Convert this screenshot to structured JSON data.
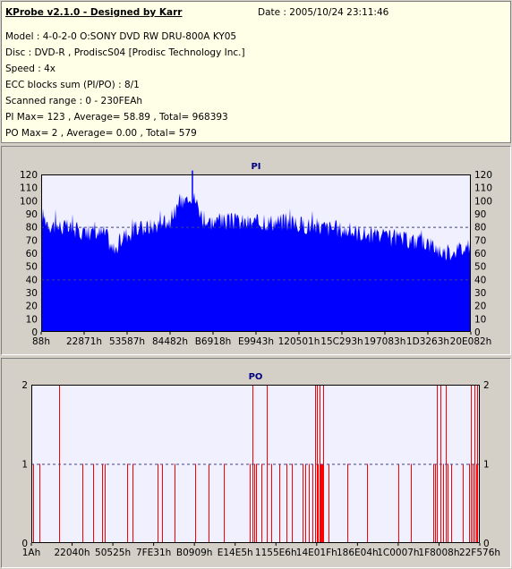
{
  "info": {
    "title": "KProbe v2.1.0 - Designed by Karr",
    "date": "Date : 2005/10/24 23:11:46",
    "model": "Model : 4-0-2-0 O:SONY    DVD RW DRU-800A  KY05",
    "disc": "Disc : DVD-R , ProdiscS04   [Prodisc Technology Inc.]",
    "speed": "Speed : 4x",
    "ecc": "ECC blocks sum (PI/PO) : 8/1",
    "scanned": "Scanned range : 0 - 230FEAh",
    "pi_summary": "PI Max= 123 , Average= 58.89 , Total= 968393",
    "po_summary": "PO Max= 2 , Average= 0.00 , Total= 579"
  },
  "colors": {
    "plot_bg": "#f0f0ff",
    "pi_fill": "#0000ff",
    "po_line": "#ff0000",
    "grid": "#404080",
    "title": "#000080"
  },
  "chart_data": [
    {
      "type": "area",
      "title": "PI",
      "ylim": [
        0,
        120
      ],
      "yticks": [
        0,
        10,
        20,
        30,
        40,
        50,
        60,
        70,
        80,
        90,
        100,
        110,
        120
      ],
      "xlim_hex": [
        "88h",
        "230FEAh"
      ],
      "xtick_labels": [
        "88h",
        "22871h",
        "53587h",
        "84482h",
        "B6918h",
        "E9943h",
        "120501h",
        "15C293h",
        "197083h",
        "1D3263h",
        "20E082h"
      ],
      "grid_y": [
        40,
        80,
        120
      ],
      "profile": {
        "x": [
          0,
          0.02,
          0.05,
          0.1,
          0.15,
          0.17,
          0.19,
          0.22,
          0.25,
          0.3,
          0.33,
          0.345,
          0.36,
          0.38,
          0.4,
          0.45,
          0.5,
          0.55,
          0.6,
          0.65,
          0.7,
          0.75,
          0.8,
          0.85,
          0.9,
          0.94,
          0.97,
          1.0
        ],
        "y": [
          90,
          82,
          80,
          76,
          75,
          60,
          73,
          78,
          80,
          85,
          100,
          106,
          100,
          84,
          84,
          84,
          83,
          84,
          82,
          80,
          78,
          75,
          72,
          70,
          68,
          60,
          63,
          64
        ]
      },
      "max": 123,
      "average": 58.89
    },
    {
      "type": "bar",
      "title": "PO",
      "ylim": [
        0,
        2
      ],
      "yticks": [
        0,
        1,
        2
      ],
      "xtick_labels": [
        "1Ah",
        "22040h",
        "50525h",
        "7FE31h",
        "B0909h",
        "E14E5h",
        "1155E6h",
        "14E01Fh",
        "186E04h",
        "1C0007h",
        "1F8008h",
        "22F576h"
      ],
      "grid_y": [
        1,
        2
      ],
      "spikes_value2": [
        0.061,
        0.493,
        0.525,
        0.633,
        0.636,
        0.642,
        0.651,
        0.904,
        0.912,
        0.924,
        0.981,
        0.989,
        0.995
      ],
      "spikes_value1": [
        0.003,
        0.018,
        0.114,
        0.138,
        0.158,
        0.164,
        0.214,
        0.226,
        0.282,
        0.291,
        0.319,
        0.366,
        0.396,
        0.429,
        0.488,
        0.497,
        0.501,
        0.512,
        0.534,
        0.552,
        0.569,
        0.581,
        0.604,
        0.611,
        0.619,
        0.627,
        0.632,
        0.637,
        0.639,
        0.645,
        0.647,
        0.649,
        0.663,
        0.705,
        0.748,
        0.819,
        0.846,
        0.897,
        0.901,
        0.918,
        0.929,
        0.936,
        0.963,
        0.976,
        0.985,
        0.993,
        0.998
      ]
    }
  ]
}
